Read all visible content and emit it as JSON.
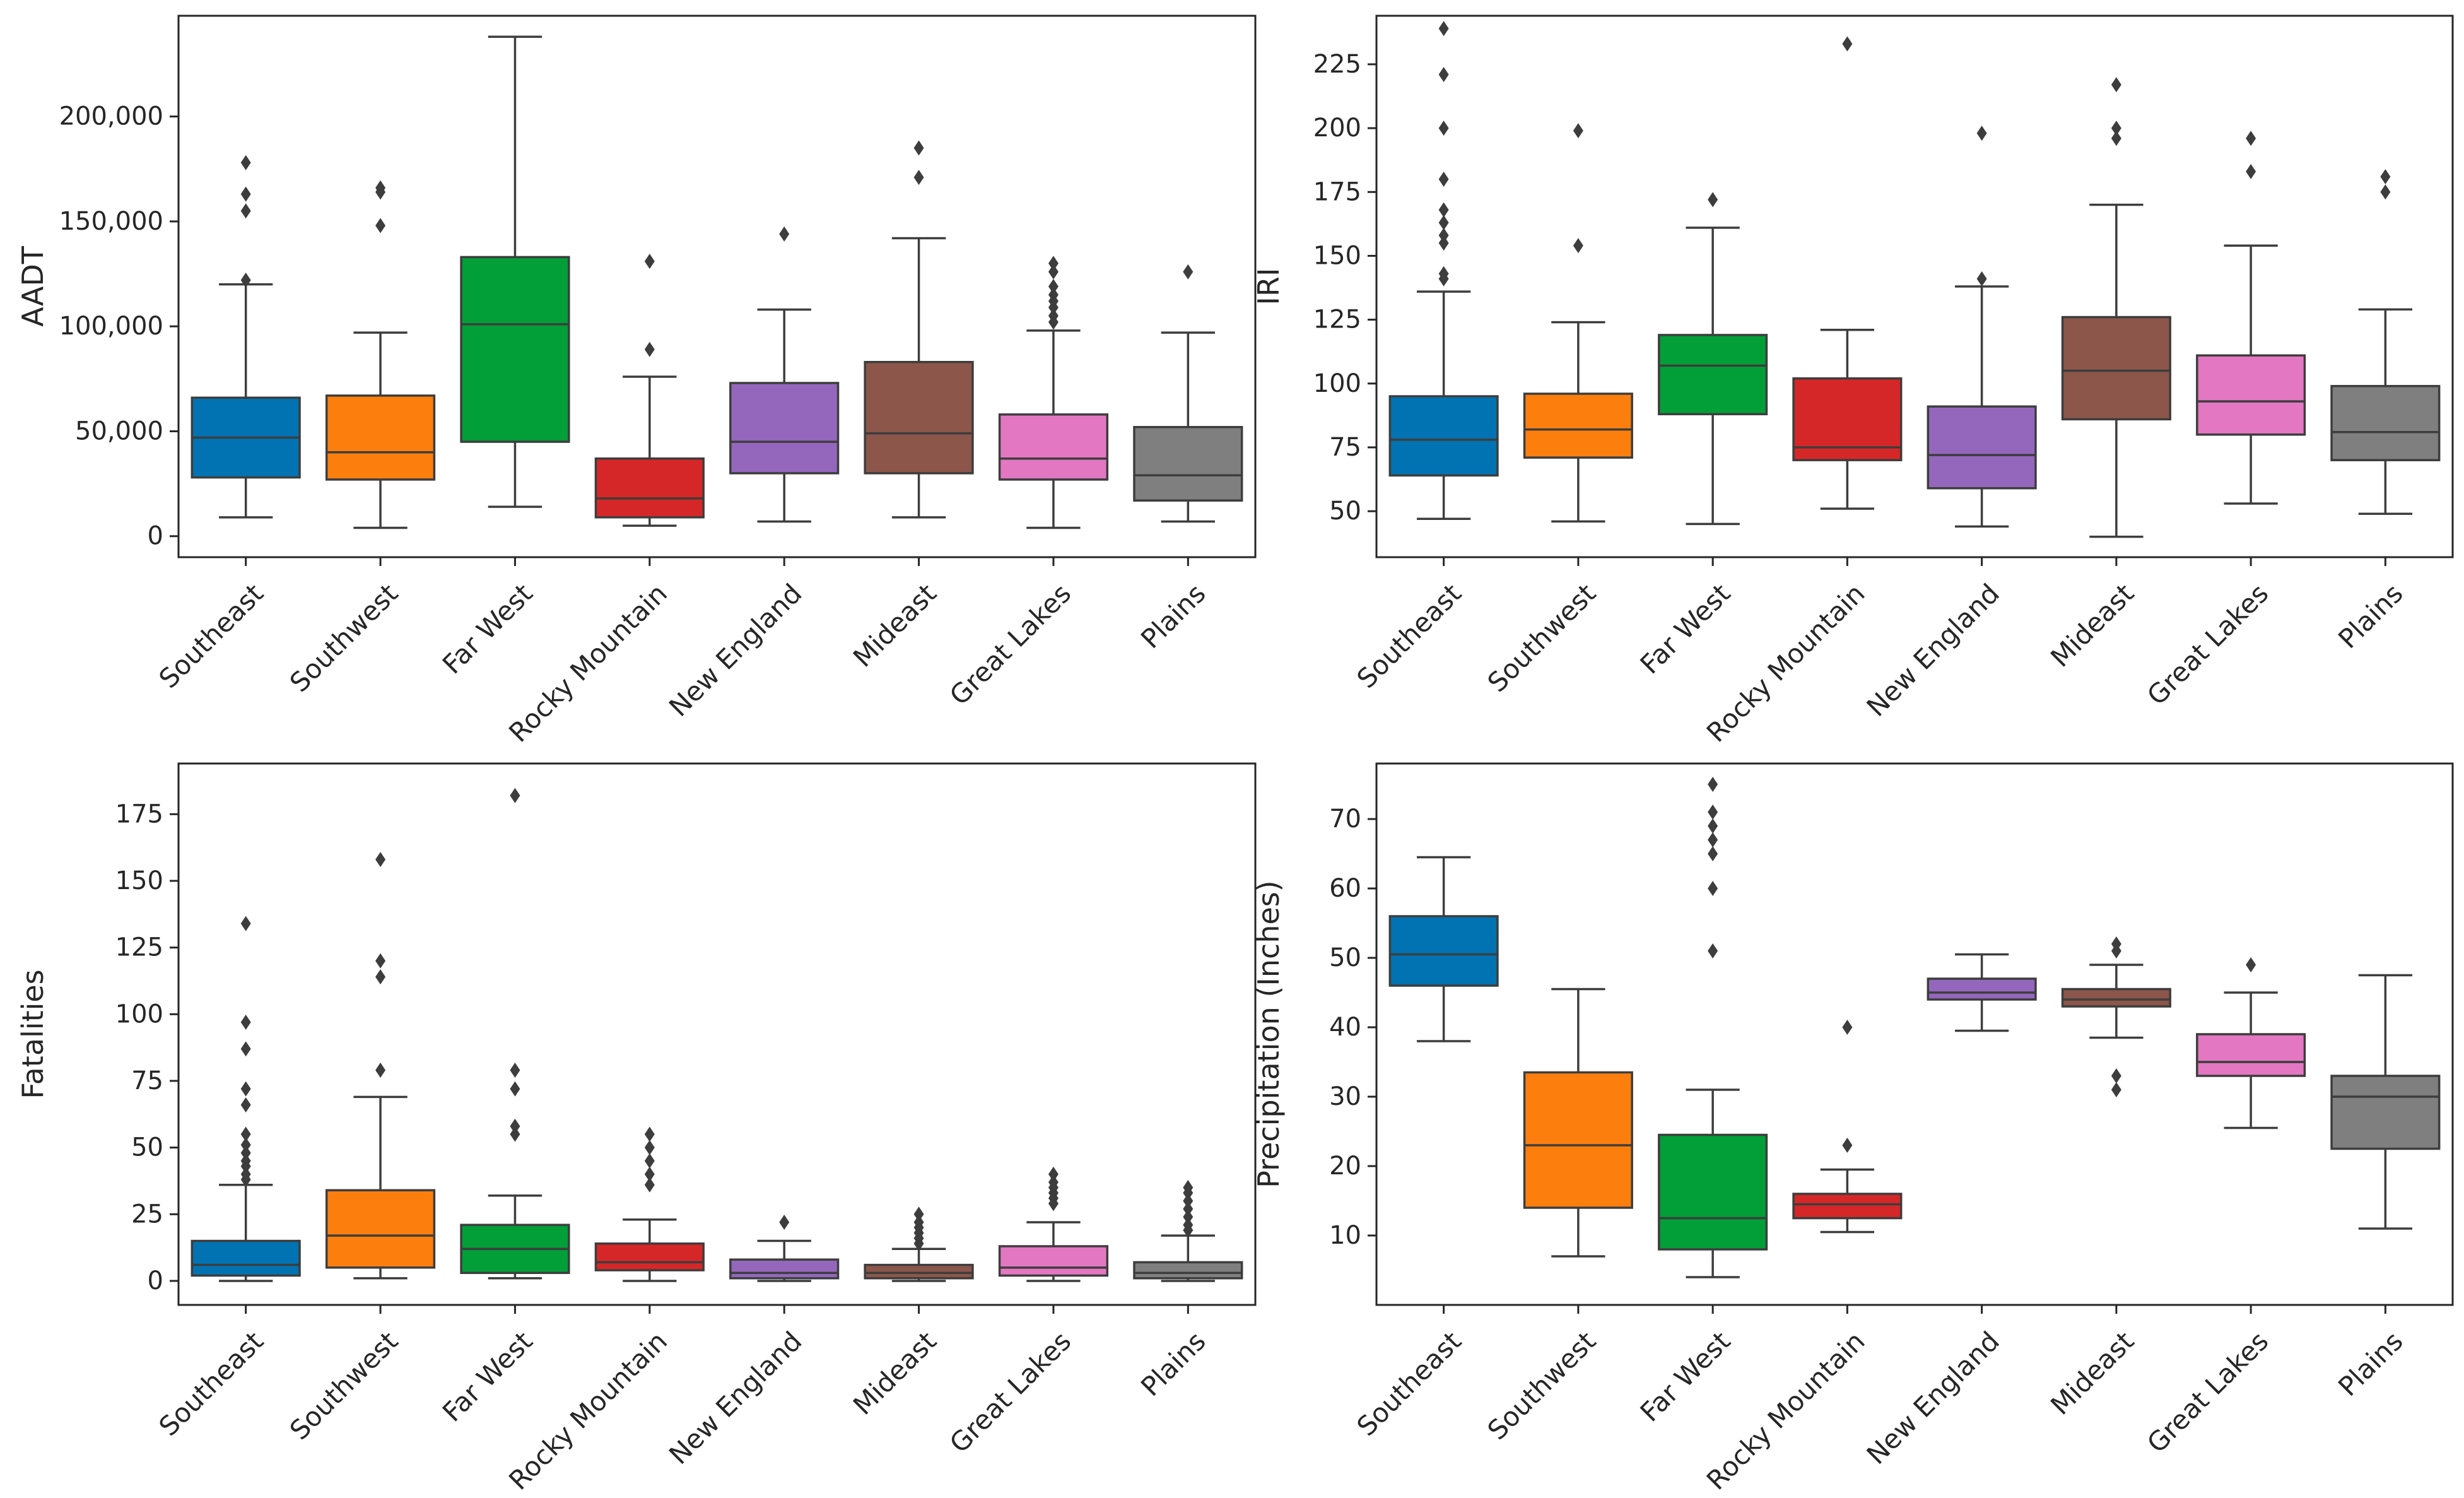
{
  "colors": {
    "regions": [
      "#0173b2",
      "#fc7f0d",
      "#029e38",
      "#d62728",
      "#9467bd",
      "#8c564b",
      "#e377c2",
      "#7f7f7f"
    ],
    "line": "#3d3d3d",
    "frame": "#262626"
  },
  "chart_data": [
    {
      "type": "box",
      "title": "",
      "xlabel": "",
      "ylabel": "AADT",
      "ylim": [
        -10000,
        248000
      ],
      "yticks": [
        0,
        50000,
        100000,
        150000,
        200000
      ],
      "ytick_labels": [
        "0",
        "50,000",
        "100,000",
        "150,000",
        "200,000"
      ],
      "categories": [
        "Southeast",
        "Southwest",
        "Far West",
        "Rocky Mountain",
        "New England",
        "Mideast",
        "Great Lakes",
        "Plains"
      ],
      "boxes": [
        {
          "whislo": 9000,
          "q1": 28000,
          "med": 47000,
          "q3": 66000,
          "whishi": 120000,
          "fliers": [
            122000,
            155000,
            163000,
            178000
          ]
        },
        {
          "whislo": 4000,
          "q1": 27000,
          "med": 40000,
          "q3": 67000,
          "whishi": 97000,
          "fliers": [
            148000,
            164000,
            166000
          ]
        },
        {
          "whislo": 14000,
          "q1": 45000,
          "med": 101000,
          "q3": 133000,
          "whishi": 238000,
          "fliers": []
        },
        {
          "whislo": 5000,
          "q1": 9000,
          "med": 18000,
          "q3": 37000,
          "whishi": 76000,
          "fliers": [
            89000,
            131000
          ]
        },
        {
          "whislo": 7000,
          "q1": 30000,
          "med": 45000,
          "q3": 73000,
          "whishi": 108000,
          "fliers": [
            144000
          ]
        },
        {
          "whislo": 9000,
          "q1": 30000,
          "med": 49000,
          "q3": 83000,
          "whishi": 142000,
          "fliers": [
            171000,
            185000
          ]
        },
        {
          "whislo": 4000,
          "q1": 27000,
          "med": 37000,
          "q3": 58000,
          "whishi": 98000,
          "fliers": [
            102000,
            105000,
            109000,
            112000,
            115000,
            119000,
            126000,
            130000
          ]
        },
        {
          "whislo": 7000,
          "q1": 17000,
          "med": 29000,
          "q3": 52000,
          "whishi": 97000,
          "fliers": [
            126000
          ]
        }
      ]
    },
    {
      "type": "box",
      "title": "",
      "xlabel": "",
      "ylabel": "IRI",
      "ylim": [
        32,
        244
      ],
      "yticks": [
        50,
        75,
        100,
        125,
        150,
        175,
        200,
        225
      ],
      "ytick_labels": [
        "50",
        "75",
        "100",
        "125",
        "150",
        "175",
        "200",
        "225"
      ],
      "categories": [
        "Southeast",
        "Southwest",
        "Far West",
        "Rocky Mountain",
        "New England",
        "Mideast",
        "Great Lakes",
        "Plains"
      ],
      "boxes": [
        {
          "whislo": 47,
          "q1": 64,
          "med": 78,
          "q3": 95,
          "whishi": 136,
          "fliers": [
            141,
            143,
            155,
            158,
            163,
            168,
            180,
            200,
            221,
            239
          ]
        },
        {
          "whislo": 46,
          "q1": 71,
          "med": 82,
          "q3": 96,
          "whishi": 124,
          "fliers": [
            154,
            199
          ]
        },
        {
          "whislo": 45,
          "q1": 88,
          "med": 107,
          "q3": 119,
          "whishi": 161,
          "fliers": [
            172
          ]
        },
        {
          "whislo": 51,
          "q1": 70,
          "med": 75,
          "q3": 102,
          "whishi": 121,
          "fliers": [
            233
          ]
        },
        {
          "whislo": 44,
          "q1": 59,
          "med": 72,
          "q3": 91,
          "whishi": 138,
          "fliers": [
            141,
            198
          ]
        },
        {
          "whislo": 40,
          "q1": 86,
          "med": 105,
          "q3": 126,
          "whishi": 170,
          "fliers": [
            196,
            200,
            217
          ]
        },
        {
          "whislo": 53,
          "q1": 80,
          "med": 93,
          "q3": 111,
          "whishi": 154,
          "fliers": [
            183,
            196
          ]
        },
        {
          "whislo": 49,
          "q1": 70,
          "med": 81,
          "q3": 99,
          "whishi": 129,
          "fliers": [
            175,
            181
          ]
        }
      ]
    },
    {
      "type": "box",
      "title": "",
      "xlabel": "",
      "ylabel": "Fatalities",
      "ylim": [
        -9,
        194
      ],
      "yticks": [
        0,
        25,
        50,
        75,
        100,
        125,
        150,
        175
      ],
      "ytick_labels": [
        "0",
        "25",
        "50",
        "75",
        "100",
        "125",
        "150",
        "175"
      ],
      "categories": [
        "Southeast",
        "Southwest",
        "Far West",
        "Rocky Mountain",
        "New England",
        "Mideast",
        "Great Lakes",
        "Plains"
      ],
      "boxes": [
        {
          "whislo": 0,
          "q1": 2,
          "med": 6,
          "q3": 15,
          "whishi": 36,
          "fliers": [
            38,
            40,
            43,
            45,
            48,
            51,
            55,
            66,
            72,
            87,
            97,
            134
          ]
        },
        {
          "whislo": 1,
          "q1": 5,
          "med": 17,
          "q3": 34,
          "whishi": 69,
          "fliers": [
            79,
            114,
            120,
            158
          ]
        },
        {
          "whislo": 1,
          "q1": 3,
          "med": 12,
          "q3": 21,
          "whishi": 32,
          "fliers": [
            55,
            58,
            72,
            79,
            182
          ]
        },
        {
          "whislo": 0,
          "q1": 4,
          "med": 7,
          "q3": 14,
          "whishi": 23,
          "fliers": [
            36,
            40,
            45,
            50,
            55
          ]
        },
        {
          "whislo": 0,
          "q1": 1,
          "med": 3,
          "q3": 8,
          "whishi": 15,
          "fliers": [
            22
          ]
        },
        {
          "whislo": 0,
          "q1": 1,
          "med": 3,
          "q3": 6,
          "whishi": 12,
          "fliers": [
            14,
            16,
            18,
            20,
            22,
            25
          ]
        },
        {
          "whislo": 0,
          "q1": 2,
          "med": 5,
          "q3": 13,
          "whishi": 22,
          "fliers": [
            29,
            31,
            33,
            35,
            37,
            40
          ]
        },
        {
          "whislo": 0,
          "q1": 1,
          "med": 3,
          "q3": 7,
          "whishi": 17,
          "fliers": [
            19,
            21,
            24,
            27,
            30,
            33,
            35
          ]
        }
      ]
    },
    {
      "type": "box",
      "title": "",
      "xlabel": "",
      "ylabel": "Precipitation (Inches)",
      "ylim": [
        0,
        78
      ],
      "yticks": [
        10,
        20,
        30,
        40,
        50,
        60,
        70
      ],
      "ytick_labels": [
        "10",
        "20",
        "30",
        "40",
        "50",
        "60",
        "70"
      ],
      "categories": [
        "Southeast",
        "Southwest",
        "Far West",
        "Rocky Mountain",
        "New England",
        "Mideast",
        "Great Lakes",
        "Plains"
      ],
      "boxes": [
        {
          "whislo": 38,
          "q1": 46,
          "med": 50.5,
          "q3": 56,
          "whishi": 64.5,
          "fliers": []
        },
        {
          "whislo": 7,
          "q1": 14,
          "med": 23,
          "q3": 33.5,
          "whishi": 45.5,
          "fliers": []
        },
        {
          "whislo": 4,
          "q1": 8,
          "med": 12.5,
          "q3": 24.5,
          "whishi": 31,
          "fliers": [
            51,
            60,
            65,
            67,
            69,
            71,
            75
          ]
        },
        {
          "whislo": 10.5,
          "q1": 12.5,
          "med": 14.5,
          "q3": 16,
          "whishi": 19.5,
          "fliers": [
            23,
            40
          ]
        },
        {
          "whislo": 39.5,
          "q1": 44,
          "med": 45,
          "q3": 47,
          "whishi": 50.5,
          "fliers": []
        },
        {
          "whislo": 38.5,
          "q1": 43,
          "med": 44,
          "q3": 45.5,
          "whishi": 49,
          "fliers": [
            31,
            33,
            51,
            52
          ]
        },
        {
          "whislo": 25.5,
          "q1": 33,
          "med": 35,
          "q3": 39,
          "whishi": 45,
          "fliers": [
            49
          ]
        },
        {
          "whislo": 11,
          "q1": 22.5,
          "med": 30,
          "q3": 33,
          "whishi": 47.5,
          "fliers": []
        }
      ]
    }
  ]
}
